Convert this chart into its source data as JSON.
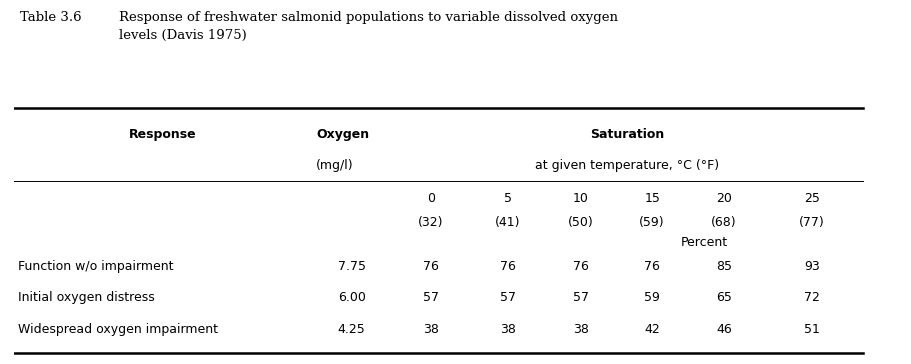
{
  "title_label": "Table 3.6",
  "title_text": "Response of freshwater salmonid populations to variable dissolved oxygen\nlevels (Davis 1975)",
  "col_headers_bold": [
    "Response",
    "Oxygen",
    "Saturation"
  ],
  "col_headers_sub": [
    "",
    "(mg/l)",
    "at given temperature, °C (°F)"
  ],
  "temp_top": [
    "0",
    "5",
    "10",
    "15",
    "20",
    "25"
  ],
  "temp_bot": [
    "(32)",
    "(41)",
    "(50)",
    "(59)",
    "(68)",
    "(77)"
  ],
  "percent_label": "Percent",
  "data_rows": [
    [
      "Function w/o impairment",
      "7.75",
      "76",
      "76",
      "76",
      "76",
      "85",
      "93"
    ],
    [
      "Initial oxygen distress",
      "6.00",
      "57",
      "57",
      "57",
      "59",
      "65",
      "72"
    ],
    [
      "Widespread oxygen impairment",
      "4.25",
      "38",
      "38",
      "38",
      "42",
      "46",
      "51"
    ]
  ],
  "bg_color": "#ffffff",
  "text_color": "#000000",
  "font_size": 9.0,
  "title_font_size": 9.5,
  "lw_thick": 1.8,
  "lw_thin": 0.7
}
